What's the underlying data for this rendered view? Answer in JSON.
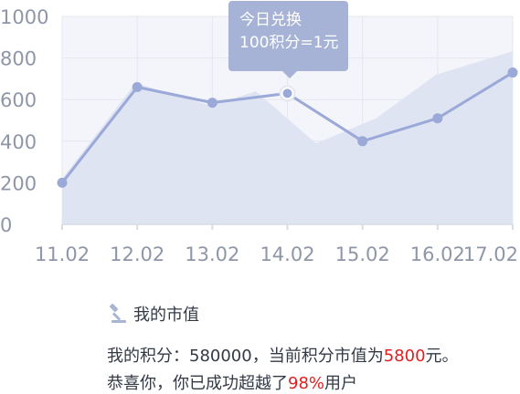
{
  "chart_data": {
    "type": "area",
    "categories": [
      "11.02",
      "12.02",
      "13.02",
      "14.02",
      "15.02",
      "16.02",
      "17.02"
    ],
    "series": [
      {
        "values": [
          200,
          660,
          585,
          630,
          400,
          510,
          730
        ],
        "style": "line-with-markers"
      }
    ],
    "background_area": {
      "x": [
        11.02,
        12.0,
        13.0,
        13.6,
        14.4,
        15.2,
        16.0,
        17.0,
        17.8
      ],
      "values": [
        220,
        680,
        570,
        640,
        390,
        510,
        720,
        830,
        840
      ]
    },
    "yticks": [
      0,
      200,
      400,
      600,
      800,
      1000
    ],
    "ylim": [
      0,
      1000
    ],
    "grid": true,
    "highlight_index": 3,
    "tooltip": {
      "line1": "今日兑换",
      "line2": "100积分=1元"
    },
    "colors": {
      "line": "#9aa9d8",
      "area": "#dfe4f3",
      "grid": "#e4e7ef",
      "tick_text": "#8e96a8",
      "tooltip": "#a6b3d6"
    }
  },
  "info": {
    "title": "我的市值",
    "title_icon": "gavel-icon",
    "line1_prefix": "我的积分：580000，当前积分市值为",
    "line1_value": "5800",
    "line1_suffix": "元。",
    "line2_prefix": "恭喜你，你已成功超越了",
    "line2_value": "98%",
    "line2_suffix": "用户",
    "highlight_color": "#e02020"
  }
}
